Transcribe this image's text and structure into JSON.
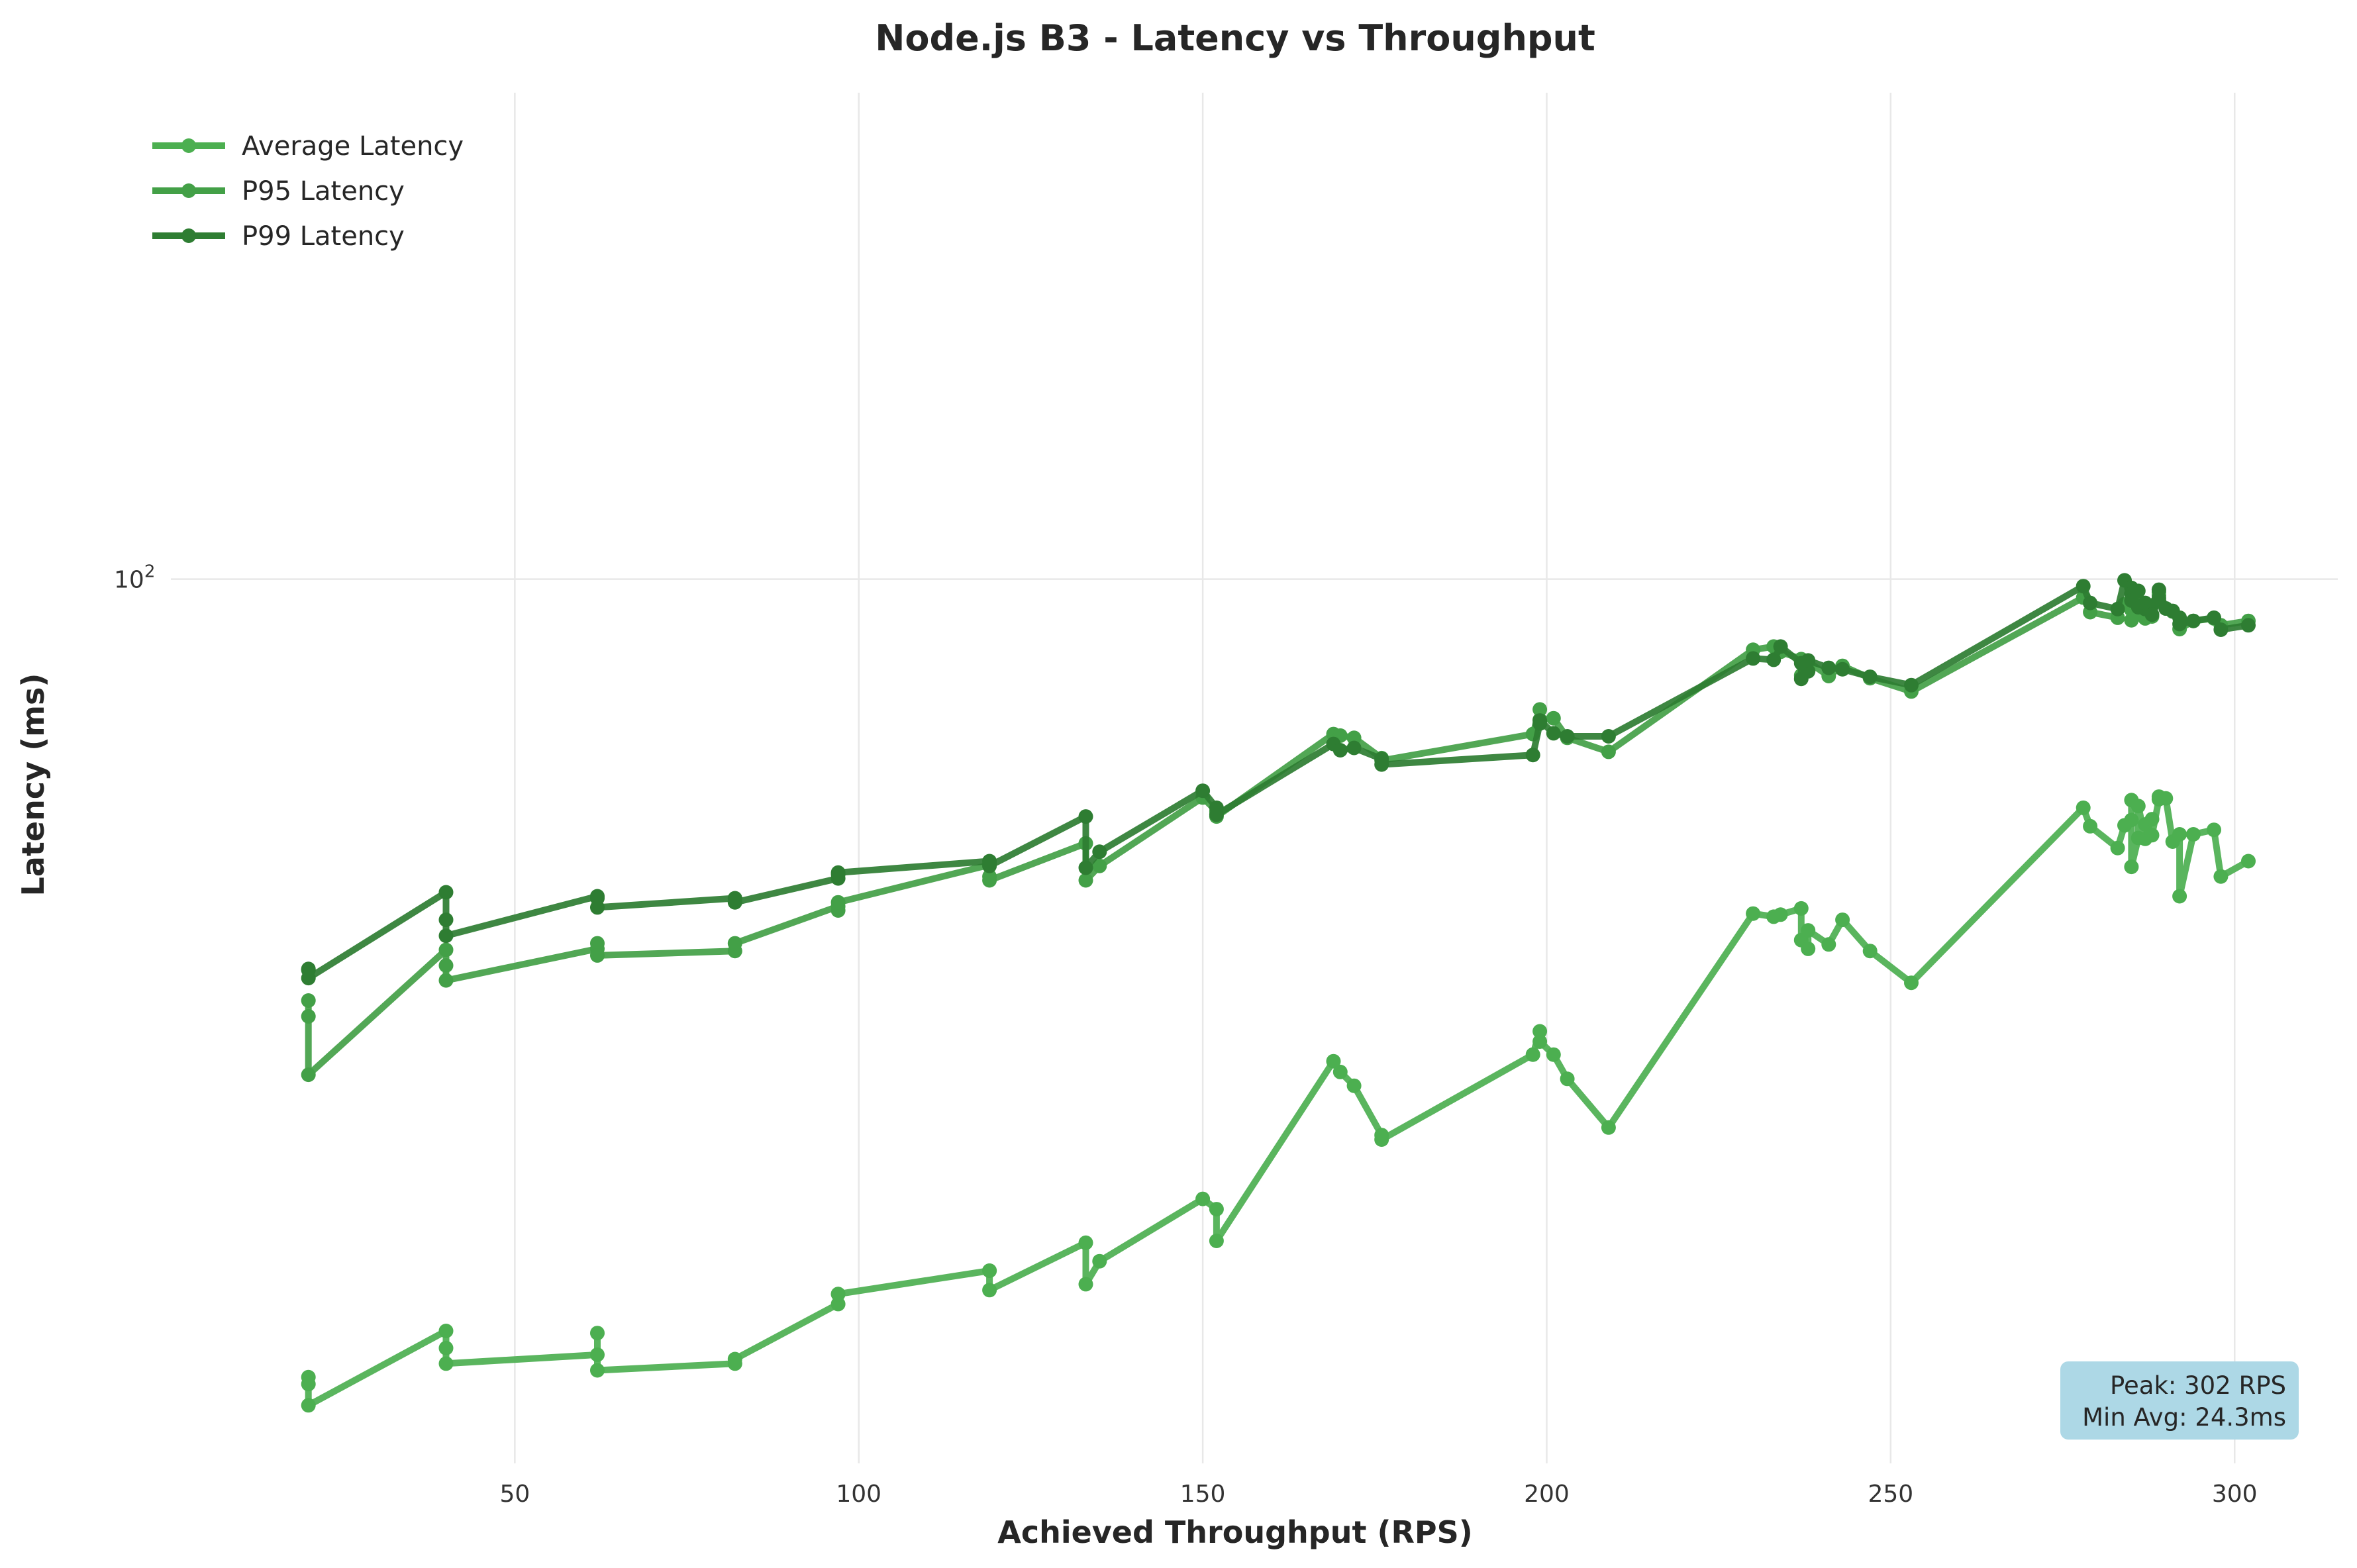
{
  "chart_data": {
    "type": "line",
    "title": "Node.js B3 - Latency vs Throughput",
    "xlabel": "Achieved Throughput (RPS)",
    "ylabel": "Latency (ms)",
    "xlim": [
      0,
      315
    ],
    "ylim": [
      22,
      230
    ],
    "yscale": "log",
    "grid": true,
    "legend_position": "top-left",
    "x_ticks": [
      {
        "value": 50,
        "label": "50"
      },
      {
        "value": 100,
        "label": "100"
      },
      {
        "value": 150,
        "label": "150"
      },
      {
        "value": 200,
        "label": "200"
      },
      {
        "value": 250,
        "label": "250"
      },
      {
        "value": 300,
        "label": "300"
      }
    ],
    "y_ticks": [
      {
        "value": 100,
        "base": "10",
        "exp": "2"
      }
    ],
    "annotation": {
      "lines": [
        "Peak: 302 RPS",
        "Min Avg: 24.3ms"
      ],
      "background": "#add8e6"
    },
    "series": [
      {
        "name": "Average Latency",
        "color": "#4caf50",
        "points": [
          [
            20,
            25.5
          ],
          [
            20,
            25.2
          ],
          [
            20,
            24.3
          ],
          [
            40,
            27.6
          ],
          [
            40,
            26.8
          ],
          [
            40,
            26.1
          ],
          [
            62,
            26.5
          ],
          [
            62,
            27.5
          ],
          [
            62,
            25.8
          ],
          [
            82,
            26.1
          ],
          [
            82,
            26.3
          ],
          [
            97,
            28.9
          ],
          [
            97,
            29.4
          ],
          [
            97,
            29.4
          ],
          [
            119,
            30.6
          ],
          [
            119,
            30.6
          ],
          [
            119,
            29.6
          ],
          [
            133,
            32.1
          ],
          [
            133,
            29.9
          ],
          [
            135,
            31.1
          ],
          [
            150,
            34.6
          ],
          [
            152,
            34.0
          ],
          [
            152,
            32.2
          ],
          [
            169,
            43.8
          ],
          [
            170,
            43.0
          ],
          [
            172,
            42.0
          ],
          [
            176,
            38.6
          ],
          [
            176,
            38.3
          ],
          [
            198,
            44.3
          ],
          [
            199,
            46.1
          ],
          [
            199,
            45.3
          ],
          [
            201,
            44.3
          ],
          [
            203,
            42.5
          ],
          [
            209,
            39.1
          ],
          [
            230,
            56.4
          ],
          [
            233,
            56.1
          ],
          [
            234,
            56.3
          ],
          [
            237,
            56.9
          ],
          [
            237,
            53.9
          ],
          [
            238,
            53.1
          ],
          [
            238,
            54.8
          ],
          [
            241,
            53.5
          ],
          [
            243,
            55.8
          ],
          [
            247,
            52.9
          ],
          [
            253,
            50.1
          ],
          [
            278,
            67.6
          ],
          [
            279,
            65.5
          ],
          [
            283,
            63.1
          ],
          [
            284,
            65.6
          ],
          [
            285,
            66.2
          ],
          [
            285,
            68.5
          ],
          [
            285,
            61.1
          ],
          [
            286,
            64.2
          ],
          [
            286,
            67.8
          ],
          [
            287,
            64.1
          ],
          [
            287,
            65.7
          ],
          [
            288,
            66.3
          ],
          [
            288,
            64.5
          ],
          [
            289,
            68.6
          ],
          [
            289,
            68.9
          ],
          [
            290,
            68.7
          ],
          [
            291,
            63.8
          ],
          [
            292,
            64.6
          ],
          [
            292,
            58.1
          ],
          [
            294,
            64.6
          ],
          [
            297,
            65.1
          ],
          [
            298,
            60.1
          ],
          [
            302,
            61.7
          ]
        ]
      },
      {
        "name": "P95 Latency",
        "color": "#43a047",
        "points": [
          [
            20,
            48.6
          ],
          [
            20,
            47.3
          ],
          [
            20,
            42.8
          ],
          [
            40,
            53.0
          ],
          [
            40,
            51.6
          ],
          [
            40,
            50.3
          ],
          [
            62,
            53.1
          ],
          [
            62,
            53.6
          ],
          [
            62,
            52.5
          ],
          [
            82,
            52.9
          ],
          [
            82,
            53.6
          ],
          [
            97,
            57.1
          ],
          [
            97,
            56.7
          ],
          [
            97,
            57.5
          ],
          [
            119,
            61.3
          ],
          [
            119,
            60.1
          ],
          [
            119,
            59.7
          ],
          [
            133,
            63.6
          ],
          [
            133,
            59.7
          ],
          [
            135,
            61.2
          ],
          [
            150,
            68.8
          ],
          [
            152,
            67.2
          ],
          [
            152,
            66.6
          ],
          [
            169,
            76.7
          ],
          [
            170,
            76.5
          ],
          [
            172,
            76.2
          ],
          [
            176,
            73.6
          ],
          [
            176,
            73.3
          ],
          [
            198,
            76.7
          ],
          [
            199,
            80.0
          ],
          [
            199,
            78.6
          ],
          [
            201,
            78.8
          ],
          [
            203,
            76.2
          ],
          [
            209,
            74.4
          ],
          [
            230,
            88.6
          ],
          [
            233,
            89.1
          ],
          [
            234,
            88.3
          ],
          [
            237,
            87.2
          ],
          [
            237,
            84.8
          ],
          [
            238,
            85.6
          ],
          [
            238,
            86.8
          ],
          [
            241,
            84.7
          ],
          [
            243,
            86.2
          ],
          [
            247,
            84.4
          ],
          [
            253,
            82.5
          ],
          [
            278,
            96.9
          ],
          [
            279,
            94.5
          ],
          [
            283,
            93.6
          ],
          [
            284,
            95.8
          ],
          [
            285,
            95.3
          ],
          [
            285,
            94.9
          ],
          [
            285,
            93.2
          ],
          [
            286,
            95.6
          ],
          [
            286,
            94.3
          ],
          [
            287,
            93.5
          ],
          [
            287,
            95.1
          ],
          [
            288,
            93.8
          ],
          [
            288,
            94.1
          ],
          [
            289,
            97.3
          ],
          [
            289,
            97.8
          ],
          [
            290,
            95.1
          ],
          [
            291,
            94.6
          ],
          [
            292,
            93.6
          ],
          [
            292,
            91.8
          ],
          [
            294,
            93.1
          ],
          [
            297,
            93.5
          ],
          [
            298,
            92.4
          ],
          [
            302,
            93.1
          ]
        ]
      },
      {
        "name": "P99 Latency",
        "color": "#2e7d32",
        "points": [
          [
            20,
            51.2
          ],
          [
            20,
            51.3
          ],
          [
            20,
            50.5
          ],
          [
            40,
            58.5
          ],
          [
            40,
            55.8
          ],
          [
            40,
            54.3
          ],
          [
            62,
            58.1
          ],
          [
            62,
            57.9
          ],
          [
            62,
            57.0
          ],
          [
            82,
            57.9
          ],
          [
            82,
            57.5
          ],
          [
            97,
            59.9
          ],
          [
            97,
            60.3
          ],
          [
            97,
            60.5
          ],
          [
            119,
            61.7
          ],
          [
            119,
            61.4
          ],
          [
            119,
            61.2
          ],
          [
            133,
            66.6
          ],
          [
            133,
            61.0
          ],
          [
            135,
            62.7
          ],
          [
            150,
            69.6
          ],
          [
            152,
            67.6
          ],
          [
            152,
            66.8
          ],
          [
            169,
            75.4
          ],
          [
            170,
            74.6
          ],
          [
            172,
            74.9
          ],
          [
            176,
            73.5
          ],
          [
            176,
            72.8
          ],
          [
            198,
            74.0
          ],
          [
            199,
            78.1
          ],
          [
            199,
            78.5
          ],
          [
            201,
            76.8
          ],
          [
            203,
            76.4
          ],
          [
            209,
            76.4
          ],
          [
            230,
            87.3
          ],
          [
            233,
            87.1
          ],
          [
            234,
            89.1
          ],
          [
            237,
            86.6
          ],
          [
            237,
            84.3
          ],
          [
            238,
            85.4
          ],
          [
            238,
            87.0
          ],
          [
            241,
            85.9
          ],
          [
            243,
            85.7
          ],
          [
            247,
            84.6
          ],
          [
            253,
            83.4
          ],
          [
            278,
            98.8
          ],
          [
            279,
            96.0
          ],
          [
            283,
            95.0
          ],
          [
            284,
            99.8
          ],
          [
            285,
            98.5
          ],
          [
            285,
            97.5
          ],
          [
            285,
            96.4
          ],
          [
            286,
            98.0
          ],
          [
            286,
            95.3
          ],
          [
            287,
            95.0
          ],
          [
            287,
            96.0
          ],
          [
            288,
            95.6
          ],
          [
            288,
            94.1
          ],
          [
            289,
            96.8
          ],
          [
            289,
            98.2
          ],
          [
            290,
            95.1
          ],
          [
            291,
            94.7
          ],
          [
            292,
            93.6
          ],
          [
            292,
            92.6
          ],
          [
            294,
            93.1
          ],
          [
            297,
            93.6
          ],
          [
            298,
            91.7
          ],
          [
            302,
            92.4
          ]
        ]
      }
    ]
  }
}
